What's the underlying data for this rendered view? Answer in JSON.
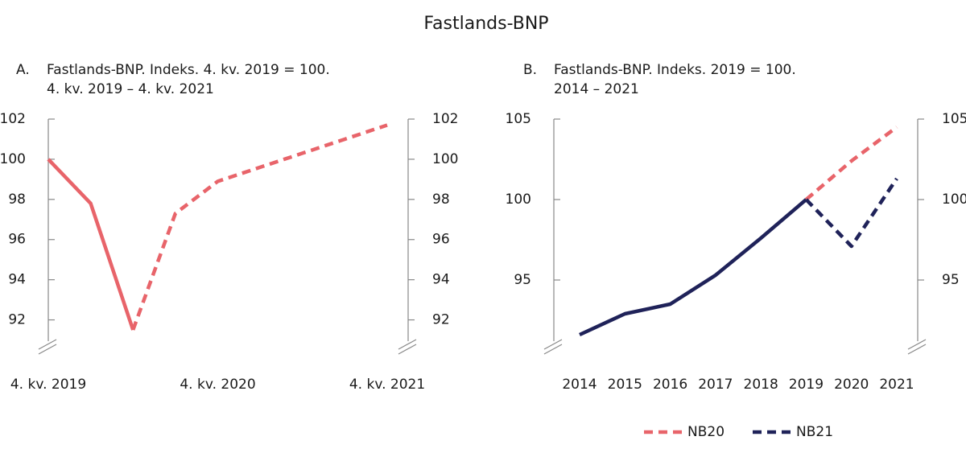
{
  "title": "Fastlands-BNP",
  "chart_data": [
    {
      "type": "line",
      "label": "A.",
      "title": [
        "Fastlands-BNP. Indeks. 4. kv. 2019 = 100.",
        "4. kv. 2019  – 4. kv. 2021"
      ],
      "categories": [
        "4. kv. 2019",
        null,
        null,
        null,
        "4. kv. 2020",
        null,
        null,
        null,
        "4. kv. 2021"
      ],
      "series": [
        {
          "color": "#e8646a",
          "style": "solid",
          "values": [
            100,
            97.8,
            91.5,
            null,
            null,
            null,
            null,
            null,
            null
          ]
        },
        {
          "color": "#e8646a",
          "style": "dashed",
          "values": [
            null,
            null,
            91.5,
            97.3,
            98.9,
            99.6,
            100.3,
            101.0,
            101.7
          ]
        }
      ],
      "ylim": [
        90.7,
        102
      ],
      "yticks": [
        92,
        94,
        96,
        98,
        100,
        102
      ],
      "grid": false
    },
    {
      "type": "line",
      "label": "B.",
      "title": [
        "Fastlands-BNP. Indeks. 2019 = 100.",
        "2014 – 2021"
      ],
      "categories": [
        "2014",
        "2015",
        "2016",
        "2017",
        "2018",
        "2019",
        "2020",
        "2021"
      ],
      "series": [
        {
          "color": "#1f2259",
          "style": "solid",
          "values": [
            91.6,
            92.9,
            93.5,
            95.3,
            97.6,
            100,
            null,
            null
          ]
        },
        {
          "name": "NB20",
          "color": "#e8646a",
          "style": "dashed",
          "values": [
            null,
            null,
            null,
            null,
            null,
            100,
            102.4,
            104.5
          ]
        },
        {
          "name": "NB21",
          "color": "#1f2259",
          "style": "dashed",
          "values": [
            null,
            null,
            null,
            null,
            null,
            100,
            97.1,
            101.3
          ]
        }
      ],
      "ylim": [
        90.9,
        105
      ],
      "yticks": [
        95,
        100,
        105
      ],
      "grid": false,
      "legend": "bottom"
    }
  ]
}
